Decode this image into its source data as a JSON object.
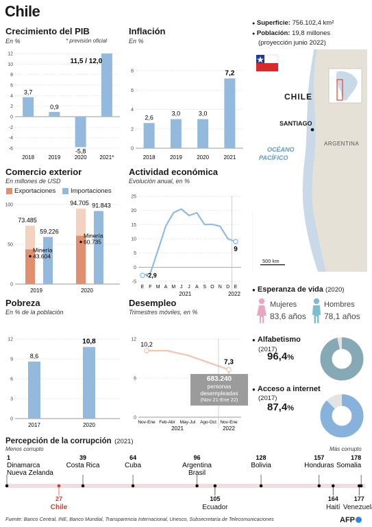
{
  "page": {
    "title": "Chile",
    "source": "Fuente: Banco Central, INE, Banco Mundial, Transparencia Internacional, Unesco, Subsecretaría de Telecomunicaciones",
    "logo": "AFP"
  },
  "info": {
    "superficie_label": "Superficie:",
    "superficie_value": "756.102,4 km²",
    "poblacion_label": "Población:",
    "poblacion_value": "19,8 millones",
    "poblacion_note": "(proyección junio 2022)"
  },
  "map": {
    "country": "CHILE",
    "capital": "SANTIAGO",
    "ocean_line1": "OCÉANO",
    "ocean_line2": "PACÍFICO",
    "neighbor": "ARGENTINA",
    "scale": "500 km",
    "colors": {
      "land": "#c9d9e8",
      "ocean": "#ffffff",
      "neighbors": "#e6e1d6"
    }
  },
  "esperanza": {
    "title": "Esperanza de vida",
    "year": "(2020)",
    "mujeres_label": "Mujeres",
    "mujeres_value": "83,6 años",
    "hombres_label": "Hombres",
    "hombres_value": "78,1 años",
    "colors": {
      "mujeres": "#e9a6bd",
      "hombres": "#7fbcd0"
    }
  },
  "alfabetismo": {
    "title": "Alfabetismo",
    "year": "(2017)",
    "value": "96,4",
    "unit": "%",
    "fraction": 0.964,
    "color": "#86a9b6"
  },
  "internet": {
    "title": "Acceso a internet",
    "year": "(2017)",
    "value": "87,4",
    "unit": "%",
    "fraction": 0.874,
    "color": "#86b2dc"
  },
  "corrupcion": {
    "title": "Percepción de la corrupción",
    "year": "(2021)",
    "left_label": "Menos corrupto",
    "right_label": "Más corrupto",
    "max_rank": 180,
    "top": [
      {
        "rank": "1",
        "name": "Dinamarca\nNueva Zelanda"
      },
      {
        "rank": "39",
        "name": "Costa Rica"
      },
      {
        "rank": "64",
        "name": "Cuba"
      },
      {
        "rank": "96",
        "name": "Argentina\nBrasil"
      },
      {
        "rank": "128",
        "name": "Bolivia"
      },
      {
        "rank": "157",
        "name": "Honduras"
      },
      {
        "rank": "178",
        "name": "Somalia"
      }
    ],
    "bottom": [
      {
        "rank": "27",
        "name": "Chile",
        "highlight": true
      },
      {
        "rank": "105",
        "name": "Ecuador"
      },
      {
        "rank": "164",
        "name": "Haití"
      },
      {
        "rank": "177",
        "name": "Venezuela"
      }
    ]
  },
  "chart_data": [
    {
      "id": "pib",
      "type": "bar",
      "title": "Crecimiento del PIB",
      "subtitle": "En %",
      "note": "* previsión oficial",
      "categories": [
        "2018",
        "2019",
        "2020",
        "2021*"
      ],
      "values": [
        3.7,
        0.9,
        -5.8,
        12.0
      ],
      "value_labels": [
        "3,7",
        "0,9",
        "-5,8",
        "11,5 / 12,0"
      ],
      "ylim": [
        -6,
        12
      ],
      "yticks": [
        "-6",
        "-4",
        "-2",
        "0",
        "2",
        "4",
        "6",
        "8",
        "10",
        "12"
      ],
      "color": "#93b9dd"
    },
    {
      "id": "inflacion",
      "type": "bar",
      "title": "Inflación",
      "subtitle": "En %",
      "categories": [
        "2018",
        "2019",
        "2020",
        "2021"
      ],
      "values": [
        2.6,
        3.0,
        3.0,
        7.2
      ],
      "value_labels": [
        "2,6",
        "3,0",
        "3,0",
        "7,2"
      ],
      "ylim": [
        0,
        8
      ],
      "yticks": [
        "0",
        "2",
        "4",
        "6",
        "8"
      ],
      "color": "#93b9dd"
    },
    {
      "id": "comercio",
      "type": "bar",
      "title": "Comercio exterior",
      "subtitle": "En millones de USD",
      "legend": [
        "Exportaciones",
        "Importaciones"
      ],
      "categories": [
        "2019",
        "2020"
      ],
      "series": [
        {
          "name": "Exportaciones",
          "values": [
            73485,
            94705
          ],
          "labels": [
            "73.485",
            "94.705"
          ]
        },
        {
          "name": "Importaciones",
          "values": [
            59226,
            91843
          ],
          "labels": [
            "59.226",
            "91.843"
          ]
        }
      ],
      "mineria": {
        "label": "Minería",
        "values": [
          43604,
          60735
        ],
        "labels": [
          "43.604",
          "60.735"
        ]
      },
      "ylim": [
        0,
        100000
      ],
      "yticks": [
        "0",
        "50",
        "100"
      ],
      "colors": {
        "export": "#f3d3c0",
        "mineria": "#e08f6f",
        "import": "#93b9dd"
      }
    },
    {
      "id": "actividad",
      "type": "line",
      "title": "Actividad económica",
      "subtitle": "Evolución anual, en %",
      "x": [
        "E",
        "F",
        "M",
        "A",
        "M",
        "J",
        "J",
        "A",
        "S",
        "O",
        "N",
        "D",
        "E"
      ],
      "x_groups": [
        "2021",
        "2022"
      ],
      "values": [
        -2.9,
        -2.2,
        6,
        14.5,
        19.2,
        20.5,
        18.2,
        19.2,
        15,
        15.1,
        14.4,
        10,
        9
      ],
      "value_labels": {
        "first": "-2,9",
        "last": "9"
      },
      "ylim": [
        -5,
        25
      ],
      "yticks": [
        "-5",
        "0",
        "5",
        "10",
        "15",
        "20",
        "25"
      ],
      "color": "#8fbbe3"
    },
    {
      "id": "pobreza",
      "type": "bar",
      "title": "Pobreza",
      "subtitle": "En % de la población",
      "categories": [
        "2017",
        "2020"
      ],
      "values": [
        8.6,
        10.8
      ],
      "value_labels": [
        "8,6",
        "10,8"
      ],
      "ylim": [
        0,
        12
      ],
      "yticks": [
        "0",
        "3",
        "6",
        "9",
        "12"
      ],
      "color": "#93b9dd"
    },
    {
      "id": "desempleo",
      "type": "line",
      "title": "Desempleo",
      "subtitle": "Trimestres móviles, en %",
      "x": [
        "Nov-Ene",
        "Feb-Abr",
        "May-Jul",
        "Ago-Oct",
        "Nov-Ene"
      ],
      "x_groups": [
        "2021",
        "2022"
      ],
      "values": [
        10.2,
        10.2,
        9.5,
        8.4,
        7.3
      ],
      "value_labels": {
        "first": "10,2",
        "last": "7,3"
      },
      "ylim": [
        0,
        12
      ],
      "yticks": [
        "0",
        "6",
        "12"
      ],
      "annotation": {
        "value": "683.240",
        "text": "personas\ndesempleadas",
        "period": "(Nov 21-Ene 22)"
      },
      "color": "#f2c7b2"
    }
  ]
}
